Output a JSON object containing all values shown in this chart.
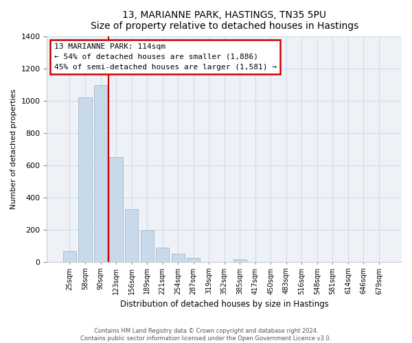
{
  "title": "13, MARIANNE PARK, HASTINGS, TN35 5PU",
  "subtitle": "Size of property relative to detached houses in Hastings",
  "xlabel": "Distribution of detached houses by size in Hastings",
  "ylabel": "Number of detached properties",
  "bar_labels": [
    "25sqm",
    "58sqm",
    "90sqm",
    "123sqm",
    "156sqm",
    "189sqm",
    "221sqm",
    "254sqm",
    "287sqm",
    "319sqm",
    "352sqm",
    "385sqm",
    "417sqm",
    "450sqm",
    "483sqm",
    "516sqm",
    "548sqm",
    "581sqm",
    "614sqm",
    "646sqm",
    "679sqm"
  ],
  "bar_values": [
    65,
    1020,
    1100,
    650,
    325,
    195,
    90,
    48,
    22,
    0,
    0,
    15,
    0,
    0,
    0,
    0,
    0,
    0,
    0,
    0,
    0
  ],
  "bar_color": "#c8daea",
  "bar_edge_color": "#a0b8d0",
  "marker_label": "13 MARIANNE PARK: 114sqm",
  "annotation_line1": "← 54% of detached houses are smaller (1,886)",
  "annotation_line2": "45% of semi-detached houses are larger (1,581) →",
  "annotation_box_color": "#ffffff",
  "annotation_box_edge": "#cc0000",
  "marker_line_color": "#cc0000",
  "ylim": [
    0,
    1400
  ],
  "yticks": [
    0,
    200,
    400,
    600,
    800,
    1000,
    1200,
    1400
  ],
  "grid_color": "#d0dde8",
  "footer_line1": "Contains HM Land Registry data © Crown copyright and database right 2024.",
  "footer_line2": "Contains public sector information licensed under the Open Government Licence v3.0.",
  "bg_color": "#ffffff",
  "plot_bg_color": "#eef2f7"
}
